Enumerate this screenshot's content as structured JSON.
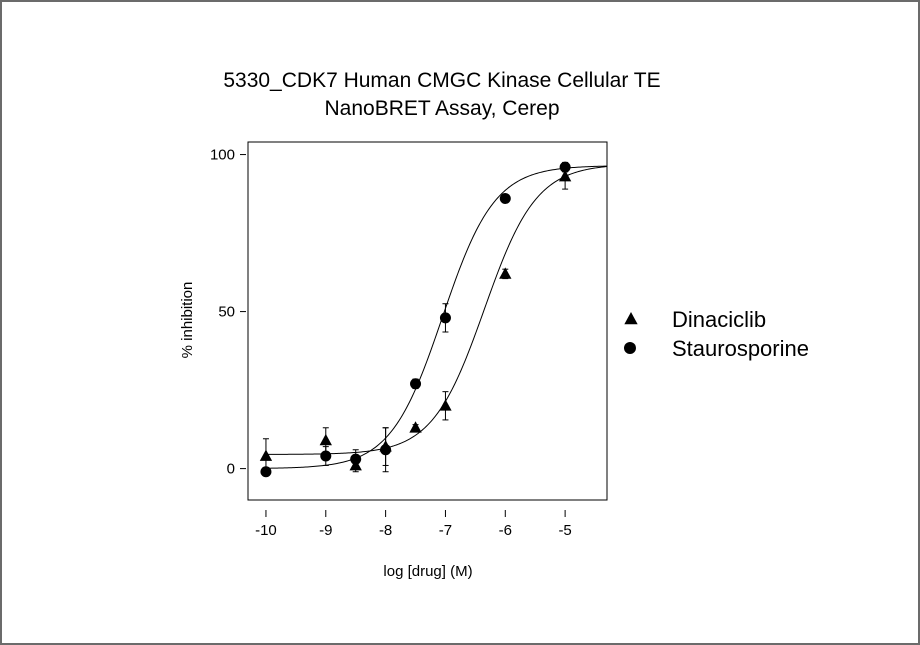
{
  "chart_data": {
    "type": "scatter",
    "title_lines": [
      "5330_CDK7 Human CMGC Kinase Cellular TE",
      "NanoBRET Assay, Cerep"
    ],
    "xlabel": "log [drug]  (M)",
    "ylabel": "% inhibition",
    "xlim": [
      -10.3,
      -4.3
    ],
    "ylim": [
      -10,
      104
    ],
    "x_ticks": [
      -10,
      -9,
      -8,
      -7,
      -6,
      -5
    ],
    "x_tick_labels": [
      "-10",
      "-9",
      "-8",
      "-7",
      "-6",
      "-5"
    ],
    "y_ticks": [
      0,
      50,
      100
    ],
    "y_tick_labels": [
      "0",
      "50",
      "100"
    ],
    "grid": false,
    "legend_position": "right",
    "series": [
      {
        "name": "Dinaciclib",
        "marker": "triangle",
        "x": [
          -10,
          -9,
          -8.5,
          -8,
          -7.5,
          -7,
          -6,
          -5
        ],
        "y": [
          4,
          9,
          1,
          7,
          13,
          20,
          62,
          93
        ],
        "error": [
          5.5,
          4,
          2,
          6,
          1,
          4.5,
          1.5,
          4
        ],
        "fit": {
          "bottom": 4.5,
          "top": 97,
          "log_ec50": -6.35,
          "hill": 1.0
        }
      },
      {
        "name": "Staurosporine",
        "marker": "circle",
        "x": [
          -10,
          -9,
          -8.5,
          -8,
          -7.5,
          -7,
          -6,
          -5
        ],
        "y": [
          -1,
          4,
          3,
          6,
          27,
          48,
          86,
          96
        ],
        "error": [
          1,
          3,
          3,
          7,
          1.5,
          4.5,
          1,
          1.5
        ],
        "fit": {
          "bottom": 0,
          "top": 96.5,
          "log_ec50": -7.05,
          "hill": 1.0
        }
      }
    ]
  }
}
